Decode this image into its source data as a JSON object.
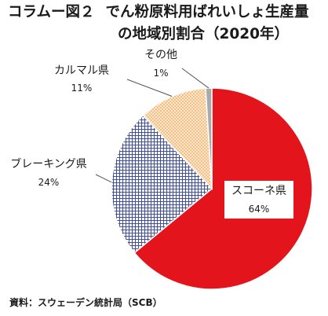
{
  "header": {
    "fig_label": "コラムー図２",
    "title_line1": "でん粉原料用ばれいしょ生産量",
    "title_line2": "の地域別割合（2020年）"
  },
  "source": "資料：スウェーデン統計局（SCB）",
  "colors": {
    "skane": "#e3141b",
    "blekinge_fill": "#3f4fa0",
    "kalmar_fill": "#f5b062",
    "other": "#aaaaaa",
    "leader": "#555555"
  },
  "chart_data": {
    "type": "pie",
    "title": "でん粉原料用ばれいしょ生産量の地域別割合（2020年）",
    "slices": [
      {
        "name": "スコーネ県",
        "value": 64,
        "label": "64%"
      },
      {
        "name": "ブレーキング県",
        "value": 24,
        "label": "24%"
      },
      {
        "name": "カルマル県",
        "value": 11,
        "label": "11%"
      },
      {
        "name": "その他",
        "value": 1,
        "label": "1%"
      }
    ]
  }
}
